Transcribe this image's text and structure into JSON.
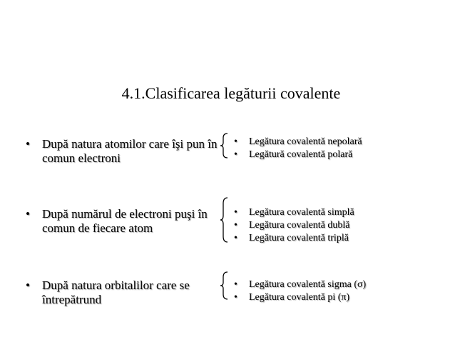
{
  "title": "4.1.Clasificarea legăturii covalente",
  "bullet_char": "•",
  "groups": [
    {
      "label": "După natura atomilor care îşi pun în comun electroni",
      "items": [
        "Legătura covalentă nepolară",
        "Legătură covalentă polară"
      ]
    },
    {
      "label": "După numărul de electroni puşi în comun de fiecare atom",
      "items": [
        "Legătura covalentă simplă",
        "Legătura covalentă dublă",
        "Legătura covalentă triplă"
      ]
    },
    {
      "label": "După  natura orbitalilor care se întrepătrund",
      "items": [
        "Legătura covalentă sigma (σ)",
        "Legătura covalentă pi (π)"
      ]
    }
  ]
}
